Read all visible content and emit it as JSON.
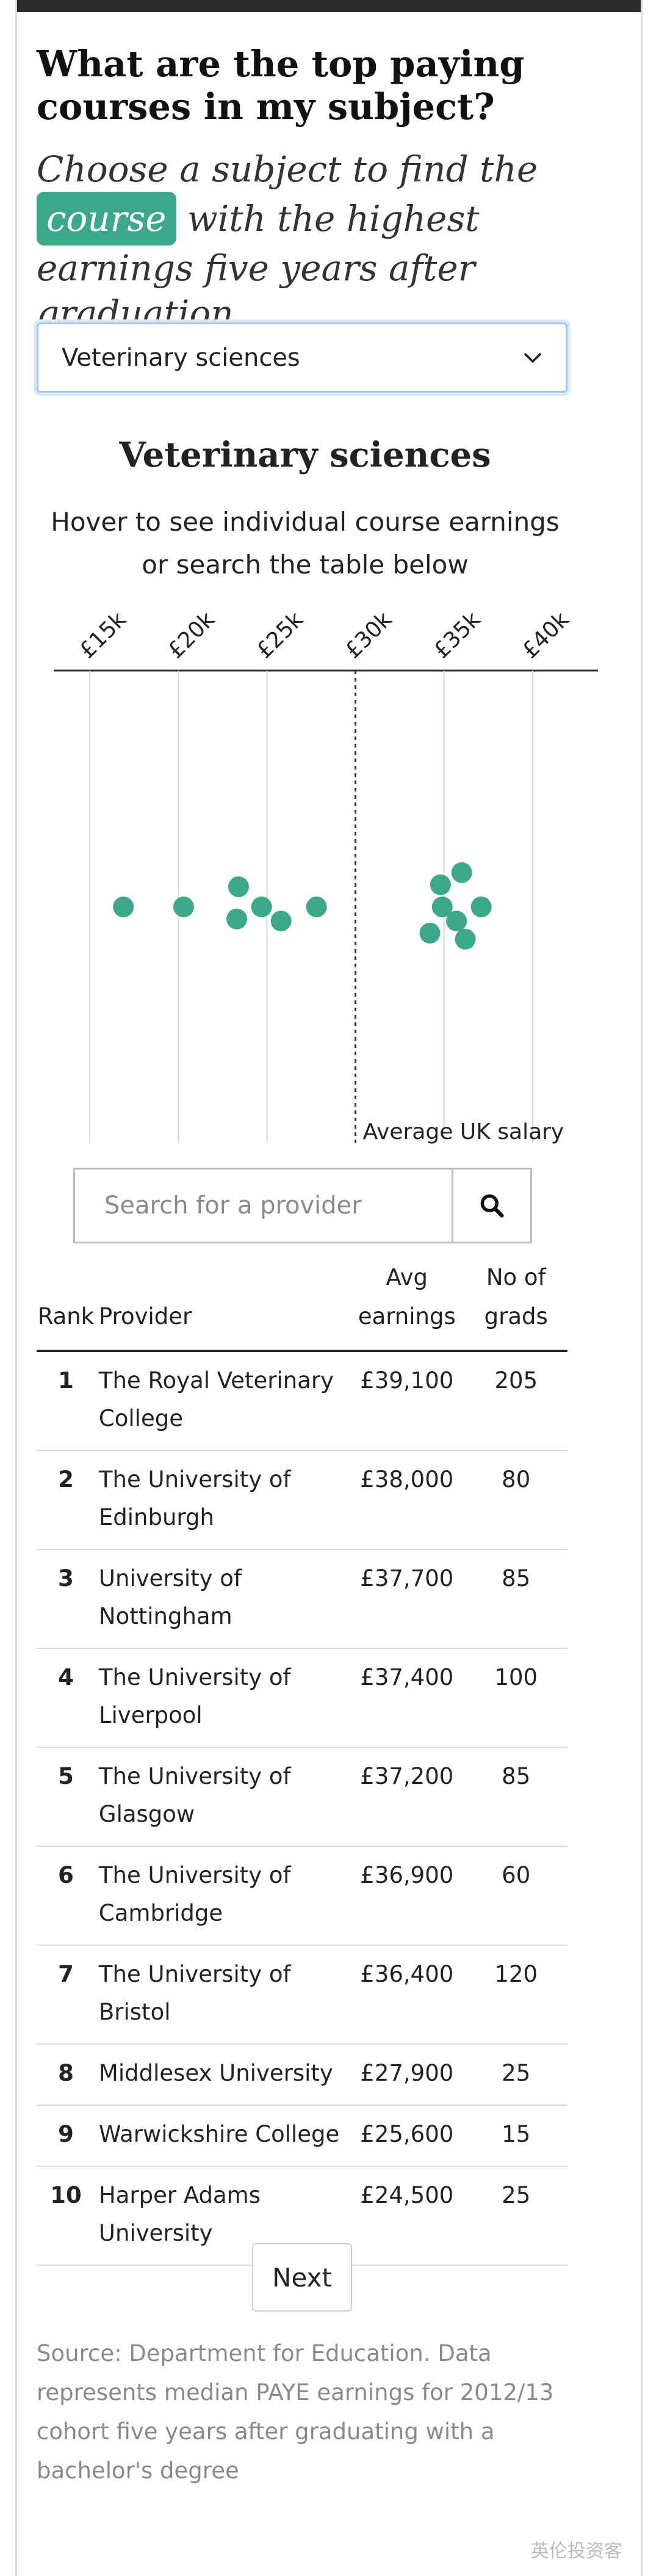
{
  "headline": "What are the top paying courses in my subject?",
  "standfirst": {
    "before": "Choose a subject to find the",
    "highlight": "course",
    "after": "with the highest earnings five years after graduation"
  },
  "subject_select": {
    "value": "Veterinary sciences",
    "icon": "chevron-down-icon"
  },
  "chart_title": "Veterinary sciences",
  "chart_subtitle": "Hover to see individual course earnings or search the table below",
  "chart_data": {
    "type": "scatter",
    "title": "Veterinary sciences",
    "x_ticks": [
      "£15k",
      "£20k",
      "£25k",
      "£30k",
      "£35k",
      "£40k"
    ],
    "x_tick_values": [
      15000,
      20000,
      25000,
      30000,
      35000,
      40000
    ],
    "xlim": [
      12000,
      43000
    ],
    "reference_line": {
      "label": "Average UK salary",
      "value": 30000
    },
    "points": [
      {
        "x": 16900,
        "jitter": 0
      },
      {
        "x": 20300,
        "jitter": 0
      },
      {
        "x": 23400,
        "jitter": -1
      },
      {
        "x": 23300,
        "jitter": 0.6
      },
      {
        "x": 24700,
        "jitter": 0
      },
      {
        "x": 25800,
        "jitter": 0.7
      },
      {
        "x": 27800,
        "jitter": 0
      },
      {
        "x": 36000,
        "jitter": -1.7
      },
      {
        "x": 34800,
        "jitter": -1.1
      },
      {
        "x": 34900,
        "jitter": 0
      },
      {
        "x": 37100,
        "jitter": 0
      },
      {
        "x": 35700,
        "jitter": 0.7
      },
      {
        "x": 34200,
        "jitter": 1.3
      },
      {
        "x": 36200,
        "jitter": 1.6
      }
    ]
  },
  "search": {
    "placeholder": "Search for a provider",
    "icon": "search-icon"
  },
  "table": {
    "headers": {
      "rank": "Rank",
      "provider": "Provider",
      "earnings": "Avg earnings",
      "grads": "No of grads"
    },
    "rows": [
      {
        "rank": "1",
        "provider": "The Royal Veterinary College",
        "earnings": "£39,100",
        "grads": "205"
      },
      {
        "rank": "2",
        "provider": "The University of Edinburgh",
        "earnings": "£38,000",
        "grads": "80"
      },
      {
        "rank": "3",
        "provider": "University of Nottingham",
        "earnings": "£37,700",
        "grads": "85"
      },
      {
        "rank": "4",
        "provider": "The University of Liverpool",
        "earnings": "£37,400",
        "grads": "100"
      },
      {
        "rank": "5",
        "provider": "The University of Glasgow",
        "earnings": "£37,200",
        "grads": "85"
      },
      {
        "rank": "6",
        "provider": "The University of Cambridge",
        "earnings": "£36,900",
        "grads": "60"
      },
      {
        "rank": "7",
        "provider": "The University of Bristol",
        "earnings": "£36,400",
        "grads": "120"
      },
      {
        "rank": "8",
        "provider": "Middlesex University",
        "earnings": "£27,900",
        "grads": "25"
      },
      {
        "rank": "9",
        "provider": "Warwickshire College",
        "earnings": "£25,600",
        "grads": "15"
      },
      {
        "rank": "10",
        "provider": "Harper Adams University",
        "earnings": "£24,500",
        "grads": "25"
      }
    ]
  },
  "next_label": "Next",
  "source": "Source: Department for Education. Data represents median PAYE earnings for 2012/13 cohort five years after graduating with a bachelor's degree",
  "watermark": "英伦投资客",
  "colors": {
    "accent": "#3aa889",
    "dot": "#3aa889",
    "reference_line": "#333333"
  }
}
